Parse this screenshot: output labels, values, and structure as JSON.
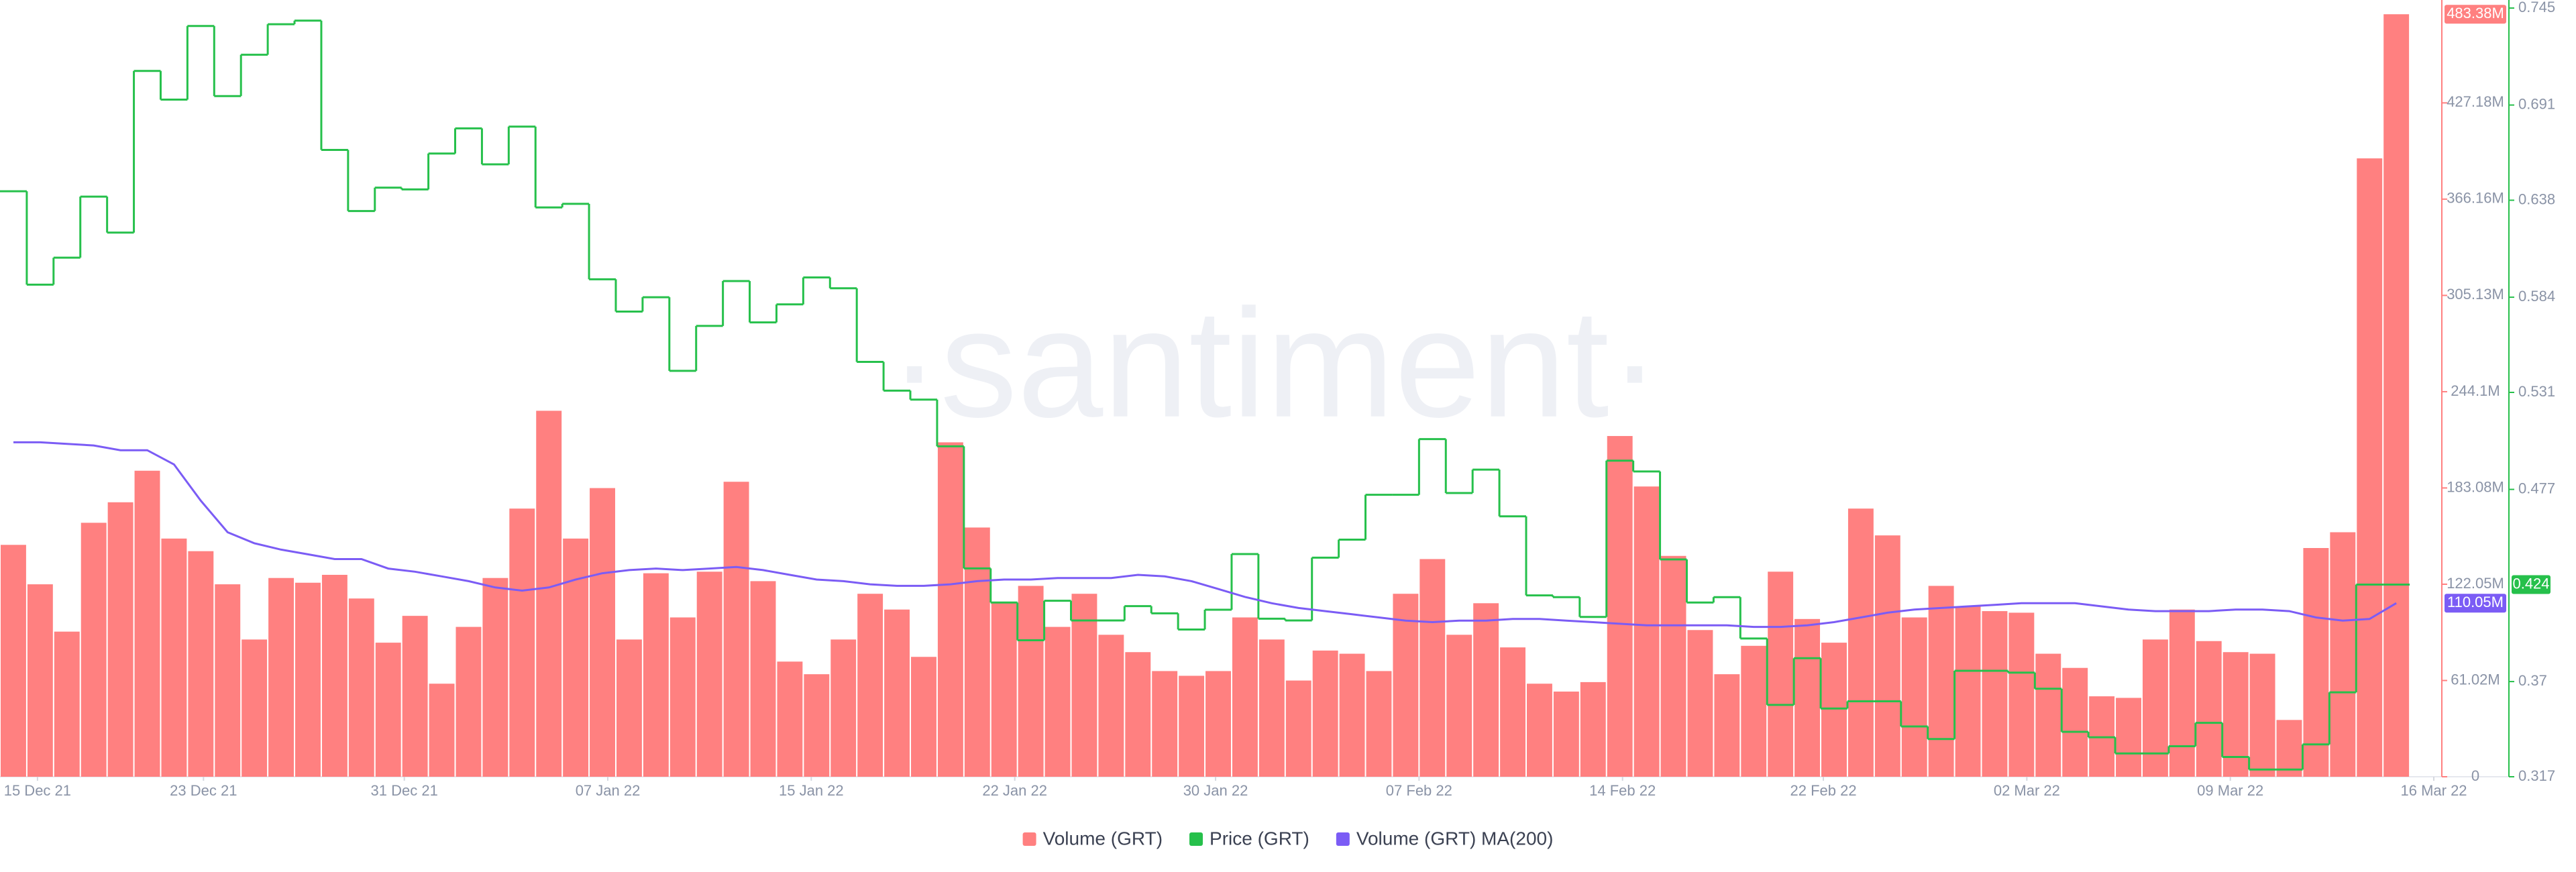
{
  "chart_data": {
    "type": "combo",
    "watermark": "·santiment·",
    "categories": [
      null,
      null,
      null,
      null,
      null,
      null,
      null,
      null,
      null,
      null,
      null,
      null,
      null,
      null,
      null,
      null,
      null,
      null,
      null,
      null,
      null,
      null,
      null,
      null,
      null,
      null,
      null,
      null,
      null,
      null,
      null,
      null,
      null,
      null,
      null,
      null,
      null,
      null,
      null,
      null,
      null,
      null,
      null,
      null,
      null,
      null,
      null,
      null,
      null,
      null,
      null,
      null,
      null,
      null,
      null,
      null,
      null,
      null,
      null,
      null,
      null,
      null,
      null,
      null,
      null,
      null,
      null,
      null,
      null,
      null,
      null,
      null,
      null,
      null,
      null,
      null,
      null,
      null,
      null,
      null,
      null,
      null,
      null,
      null,
      null,
      null,
      null,
      null,
      null,
      null
    ],
    "xlim": [
      -0.5,
      90.7
    ],
    "xticks": [
      {
        "value": 0.9,
        "label": "15 Dec 21"
      },
      {
        "value": 7.1,
        "label": "23 Dec 21"
      },
      {
        "value": 14.6,
        "label": "31 Dec 21"
      },
      {
        "value": 22.2,
        "label": "07 Jan 22"
      },
      {
        "value": 29.8,
        "label": "15 Jan 22"
      },
      {
        "value": 37.4,
        "label": "22 Jan 22"
      },
      {
        "value": 44.9,
        "label": "30 Jan 22"
      },
      {
        "value": 52.5,
        "label": "07 Feb 22"
      },
      {
        "value": 60.1,
        "label": "14 Feb 22"
      },
      {
        "value": 67.6,
        "label": "22 Feb 22"
      },
      {
        "value": 75.2,
        "label": "02 Mar 22"
      },
      {
        "value": 82.8,
        "label": "09 Mar 22"
      },
      {
        "value": 90.4,
        "label": "16 Mar 22"
      }
    ],
    "ylim": [
      0,
      487.3
    ],
    "yticks": [
      0,
      {
        "value": 61.02,
        "label": "61.02M"
      },
      {
        "value": 122.05,
        "label": "122.05M"
      },
      {
        "value": 183.08,
        "label": "183.08M"
      },
      {
        "value": 244.1,
        "label": "244.1M"
      },
      {
        "value": 305.13,
        "label": "305.13M"
      },
      {
        "value": 366.16,
        "label": "366.16M"
      },
      {
        "value": 427.18,
        "label": "427.18M"
      }
    ],
    "y2lim": [
      0.317,
      0.745
    ],
    "y2ticks": [
      0.317,
      0.37,
      0.477,
      0.531,
      0.584,
      0.638,
      0.691,
      0.745
    ],
    "series": [
      {
        "name": "Volume (GRT)",
        "type": "bar",
        "color": "#ff8080",
        "values": [
          147,
          122,
          92,
          161,
          174,
          194,
          151,
          143,
          122,
          87,
          126,
          123,
          128,
          113,
          85,
          102,
          59,
          95,
          126,
          170,
          232,
          151,
          183,
          87,
          129,
          101,
          130,
          187,
          124,
          73,
          65,
          87,
          116,
          106,
          76,
          212,
          158,
          111,
          121,
          95,
          116,
          90,
          79,
          67,
          64,
          67,
          101,
          87,
          61,
          80,
          78,
          67,
          116,
          138,
          90,
          110,
          82,
          59,
          54,
          60,
          216,
          184,
          140,
          93,
          65,
          83,
          130,
          100,
          85,
          170,
          153,
          101,
          121,
          108,
          105,
          104,
          78,
          69,
          51,
          50,
          87,
          106,
          86,
          79,
          78,
          36,
          145,
          155,
          392,
          483.38
        ],
        "value_labels": [
          null,
          null,
          null,
          null,
          null,
          null,
          null,
          null,
          null,
          null,
          null,
          null,
          null,
          null,
          null,
          null,
          null,
          null,
          null,
          null,
          null,
          null,
          null,
          null,
          null,
          null,
          null,
          null,
          null,
          null,
          null,
          null,
          null,
          null,
          null,
          null,
          null,
          null,
          null,
          null,
          null,
          null,
          null,
          null,
          null,
          null,
          null,
          null,
          null,
          null,
          null,
          null,
          null,
          null,
          null,
          null,
          null,
          null,
          null,
          null,
          null,
          null,
          null,
          null,
          null,
          null,
          null,
          null,
          null,
          null,
          null,
          null,
          null,
          null,
          null,
          null,
          null,
          null,
          null,
          null,
          null,
          null,
          null,
          null,
          null,
          null,
          null,
          null,
          null,
          "483.38M"
        ]
      },
      {
        "name": "Price (GRT)",
        "type": "step",
        "axis": "y2",
        "color": "#26c04b",
        "values": [
          0.643,
          0.591,
          0.606,
          0.64,
          0.62,
          0.71,
          0.694,
          0.735,
          0.696,
          0.719,
          0.736,
          0.738,
          0.666,
          0.632,
          0.645,
          0.644,
          0.664,
          0.678,
          0.658,
          0.679,
          0.634,
          0.636,
          0.594,
          0.576,
          0.584,
          0.543,
          0.568,
          0.593,
          0.57,
          0.58,
          0.595,
          0.589,
          0.548,
          0.532,
          0.527,
          0.501,
          0.433,
          0.414,
          0.393,
          0.415,
          0.404,
          0.404,
          0.412,
          0.408,
          0.399,
          0.41,
          0.441,
          0.405,
          0.404,
          0.439,
          0.449,
          0.474,
          0.474,
          0.505,
          0.475,
          0.488,
          0.462,
          0.418,
          0.417,
          0.406,
          0.493,
          0.487,
          0.438,
          0.414,
          0.417,
          0.394,
          0.357,
          0.383,
          0.355,
          0.359,
          0.359,
          0.345,
          0.338,
          0.376,
          0.376,
          0.375,
          0.366,
          0.342,
          0.339,
          0.33,
          0.33,
          0.334,
          0.347,
          0.328,
          0.321,
          0.321,
          0.335,
          0.364,
          0.424,
          0.424
        ]
      },
      {
        "name": "Volume (GRT) MA(200)",
        "type": "line",
        "color": "#7b5cf5",
        "values": [
          212,
          212,
          211,
          210,
          207,
          207,
          198,
          175,
          155,
          148,
          144,
          141,
          138,
          138,
          132,
          130,
          127,
          124,
          120,
          118,
          120,
          125,
          129,
          131,
          132,
          131,
          132,
          133,
          131,
          128,
          125,
          124,
          122,
          121,
          121,
          122,
          124,
          125,
          125,
          126,
          126,
          126,
          128,
          127,
          124,
          119,
          114,
          110,
          107,
          105,
          103,
          101,
          99,
          98,
          99,
          99,
          100,
          100,
          99,
          98,
          97,
          96,
          96,
          96,
          96,
          95,
          95,
          96,
          98,
          101,
          104,
          106,
          107,
          108,
          109,
          110,
          110,
          110,
          108,
          106,
          105,
          105,
          105,
          106,
          106,
          105,
          101,
          99,
          100,
          110.05
        ],
        "value_labels": [
          null,
          null,
          null,
          null,
          null,
          null,
          null,
          null,
          null,
          null,
          null,
          null,
          null,
          null,
          null,
          null,
          null,
          null,
          null,
          null,
          null,
          null,
          null,
          null,
          null,
          null,
          null,
          null,
          null,
          null,
          null,
          null,
          null,
          null,
          null,
          null,
          null,
          null,
          null,
          null,
          null,
          null,
          null,
          null,
          null,
          null,
          null,
          null,
          null,
          null,
          null,
          null,
          null,
          null,
          null,
          null,
          null,
          null,
          null,
          null,
          null,
          null,
          null,
          null,
          null,
          null,
          null,
          null,
          null,
          null,
          null,
          null,
          null,
          null,
          null,
          null,
          null,
          null,
          null,
          null,
          null,
          null,
          null,
          null,
          null,
          null,
          null,
          null,
          null,
          "110.05M"
        ]
      }
    ],
    "legend": "bottom"
  }
}
